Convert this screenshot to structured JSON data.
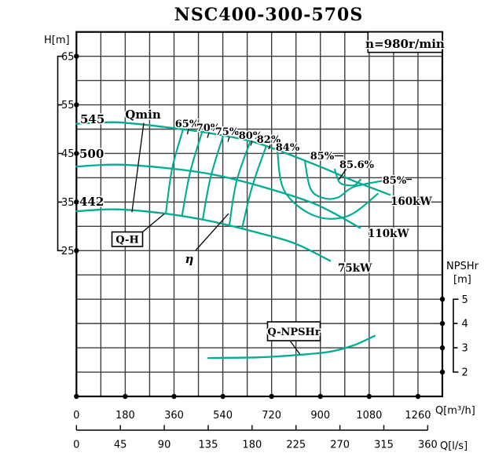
{
  "title": "NSC400-300-570S",
  "speed_note": "n=980r/min",
  "axes": {
    "h": {
      "name": "H[m]",
      "ticks": [
        "65",
        "55",
        "45",
        "35",
        "25"
      ]
    },
    "npshr": {
      "name": "NPSHr",
      "unit": "[m]",
      "ticks": [
        "5",
        "4",
        "3",
        "2"
      ]
    },
    "q_m3h": {
      "name": "Q[m³/h]",
      "ticks": [
        "0",
        "180",
        "360",
        "540",
        "720",
        "900",
        "1080",
        "1260"
      ]
    },
    "q_ls": {
      "name": "Q[l/s]",
      "ticks": [
        "0",
        "45",
        "90",
        "135",
        "180",
        "225",
        "270",
        "315",
        "360"
      ]
    }
  },
  "labels": {
    "imp_545": "545",
    "imp_500": "500",
    "imp_442": "442",
    "qmin": "Qmin",
    "qh": "Q-H",
    "eta": "η",
    "qnpshr": "Q-NPSHr",
    "eff_65": "65%",
    "eff_70": "70%",
    "eff_75": "75%",
    "eff_80": "80%",
    "eff_82": "82%",
    "eff_84": "84%",
    "eff_85": "85%",
    "eff_856": "85.6%",
    "eff_85r": "85%",
    "p_160": "160kW",
    "p_110": "110kW",
    "p_75": "75kW"
  },
  "colors": {
    "curve": "#00ac92",
    "grid": "#3d3d3d",
    "ink": "#000000"
  },
  "chart_data": {
    "type": "line",
    "title": "NSC400-300-570S",
    "speed": "n=980r/min",
    "grid": true,
    "x_axis": {
      "label": "Q[m³/h]",
      "ticks": [
        0,
        180,
        360,
        540,
        720,
        900,
        1080,
        1260
      ],
      "range": [
        0,
        1350
      ]
    },
    "x_axis_secondary": {
      "label": "Q[l/s]",
      "ticks": [
        0,
        45,
        90,
        135,
        180,
        225,
        270,
        315,
        360
      ],
      "range": [
        0,
        360
      ]
    },
    "y_axis": {
      "label": "H[m]",
      "ticks": [
        65,
        55,
        45,
        35,
        25
      ],
      "range": [
        20,
        70
      ]
    },
    "y_axis_secondary": {
      "label": "NPSHr [m]",
      "ticks": [
        5,
        4,
        3,
        2
      ],
      "range": [
        1.5,
        5.5
      ]
    },
    "series": [
      {
        "name": "Q-H impeller 545",
        "axis": "H",
        "role": "curve",
        "width": 2.3,
        "points": [
          [
            0,
            51.1
          ],
          [
            150,
            51.4
          ],
          [
            330,
            50.4
          ],
          [
            500,
            49.1
          ],
          [
            675,
            47.0
          ],
          [
            880,
            42.7
          ],
          [
            1025,
            39.3
          ],
          [
            1156,
            36.5
          ]
        ]
      },
      {
        "name": "Q-H impeller 500",
        "axis": "H",
        "role": "curve",
        "width": 2.3,
        "points": [
          [
            0,
            42.3
          ],
          [
            150,
            42.7
          ],
          [
            330,
            42.0
          ],
          [
            500,
            40.7
          ],
          [
            675,
            38.3
          ],
          [
            880,
            34.6
          ],
          [
            1046,
            29.7
          ]
        ]
      },
      {
        "name": "Q-H impeller 442",
        "axis": "H",
        "role": "curve",
        "width": 2.3,
        "points": [
          [
            0,
            33.1
          ],
          [
            150,
            33.5
          ],
          [
            330,
            32.6
          ],
          [
            500,
            31.0
          ],
          [
            675,
            28.6
          ],
          [
            805,
            26.5
          ],
          [
            936,
            22.9
          ]
        ]
      },
      {
        "name": "efficiency 65%",
        "axis": "H",
        "role": "curve",
        "width": 2.1,
        "points": [
          [
            393,
            49.9
          ],
          [
            353,
            41.9
          ],
          [
            330,
            32.8
          ]
        ]
      },
      {
        "name": "efficiency 70%",
        "axis": "H",
        "role": "curve",
        "width": 2.1,
        "points": [
          [
            463,
            49.3
          ],
          [
            419,
            41.0
          ],
          [
            390,
            32.3
          ]
        ]
      },
      {
        "name": "efficiency 75%",
        "axis": "H",
        "role": "curve",
        "width": 2.1,
        "points": [
          [
            541,
            48.6
          ],
          [
            495,
            40.1
          ],
          [
            466,
            31.5
          ]
        ]
      },
      {
        "name": "efficiency 80%",
        "axis": "H",
        "role": "curve",
        "width": 2.1,
        "points": [
          [
            640,
            47.3
          ],
          [
            590,
            39.1
          ],
          [
            564,
            30.2
          ]
        ]
      },
      {
        "name": "efficiency 82%",
        "axis": "H",
        "role": "curve",
        "width": 2.1,
        "points": [
          [
            700,
            46.5
          ],
          [
            648,
            38.1
          ],
          [
            611,
            29.6
          ]
        ]
      },
      {
        "name": "efficiency 84%",
        "axis": "H",
        "role": "curve",
        "width": 2.1,
        "points": [
          [
            741,
            45.7
          ],
          [
            767,
            37.3
          ],
          [
            877,
            32.2
          ],
          [
            1000,
            32.1
          ],
          [
            1112,
            36.7
          ]
        ]
      },
      {
        "name": "efficiency 85%",
        "axis": "H",
        "role": "curve",
        "width": 2.1,
        "points": [
          [
            843,
            43.3
          ],
          [
            863,
            37.8
          ],
          [
            906,
            35.9
          ],
          [
            964,
            35.9
          ],
          [
            1022,
            38.1
          ],
          [
            1133,
            39.4
          ]
        ]
      },
      {
        "name": "efficiency 85.6%",
        "axis": "H",
        "role": "curve",
        "width": 2.1,
        "points": [
          [
            953,
            41.7
          ],
          [
            970,
            39.1
          ],
          [
            996,
            38.5
          ],
          [
            1028,
            38.5
          ],
          [
            1048,
            39.6
          ]
        ]
      },
      {
        "name": "Qmin limit line",
        "axis": "H",
        "role": "ink",
        "width": 1.3,
        "points": [
          [
            248,
            51.2
          ],
          [
            205,
            33.0
          ]
        ]
      },
      {
        "name": "Q-NPSHr",
        "axis": "N",
        "role": "curve",
        "width": 2.3,
        "points": [
          [
            486,
            2.58
          ],
          [
            674,
            2.61
          ],
          [
            819,
            2.71
          ],
          [
            935,
            2.84
          ],
          [
            1022,
            3.1
          ],
          [
            1100,
            3.49
          ]
        ]
      }
    ]
  }
}
